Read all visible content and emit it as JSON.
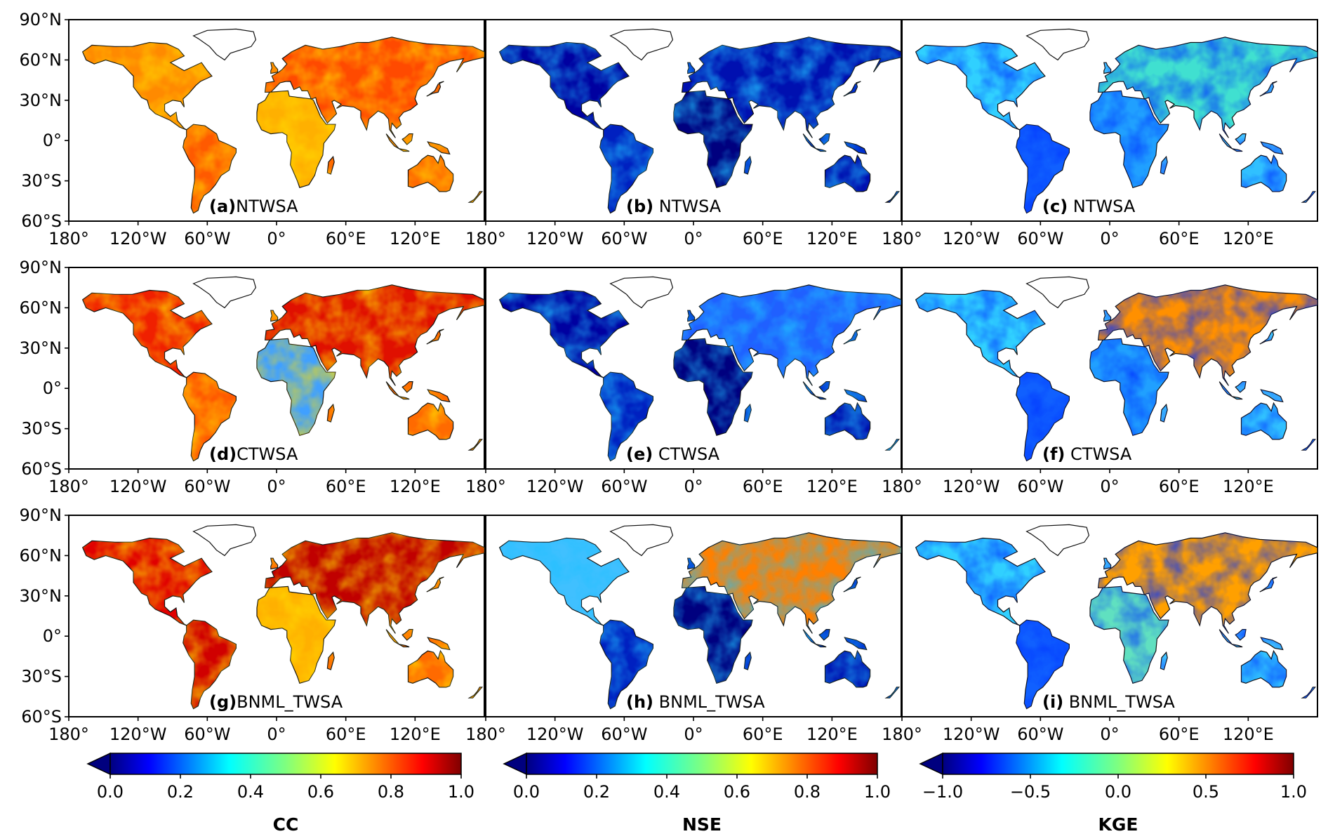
{
  "lat_ticks": [
    "90°N",
    "60°N",
    "30°N",
    "0°",
    "30°S",
    "60°S"
  ],
  "lon_ticks": [
    "180°",
    "120°W",
    "60°W",
    "0°",
    "60°E",
    "120°E"
  ],
  "lon_ticks_last_col": [
    "180°",
    "120°W",
    "60°W",
    "0°",
    "60°E",
    "120°E"
  ],
  "panels": [
    {
      "letter": "(a)",
      "name": "NTWSA",
      "metric": "CC"
    },
    {
      "letter": "(b)",
      "name": " NTWSA",
      "metric": "NSE"
    },
    {
      "letter": "(c)",
      "name": " NTWSA",
      "metric": "KGE"
    },
    {
      "letter": "(d)",
      "name": "CTWSA",
      "metric": "CC"
    },
    {
      "letter": "(e)",
      "name": " CTWSA",
      "metric": "NSE"
    },
    {
      "letter": "(f)",
      "name": " CTWSA",
      "metric": "KGE"
    },
    {
      "letter": "(g)",
      "name": "BNML_TWSA",
      "metric": "CC"
    },
    {
      "letter": "(h)",
      "name": " BNML_TWSA",
      "metric": "NSE"
    },
    {
      "letter": "(i)",
      "name": " BNML_TWSA",
      "metric": "KGE"
    }
  ],
  "colorbars": [
    {
      "label": "CC",
      "ticks": [
        "0.0",
        "0.2",
        "0.4",
        "0.6",
        "0.8",
        "1.0"
      ],
      "extend": "min"
    },
    {
      "label": "NSE",
      "ticks": [
        "0.0",
        "0.2",
        "0.4",
        "0.6",
        "0.8",
        "1.0"
      ],
      "extend": "min"
    },
    {
      "label": "KGE",
      "ticks": [
        "−1.0",
        "−0.5",
        "0.0",
        "0.5",
        "1.0"
      ],
      "extend": "min"
    }
  ],
  "colormap": [
    "#00007f",
    "#0000ff",
    "#007fff",
    "#00ffff",
    "#7fff7f",
    "#ffff00",
    "#ff7f00",
    "#ff0000",
    "#7f0000"
  ]
}
